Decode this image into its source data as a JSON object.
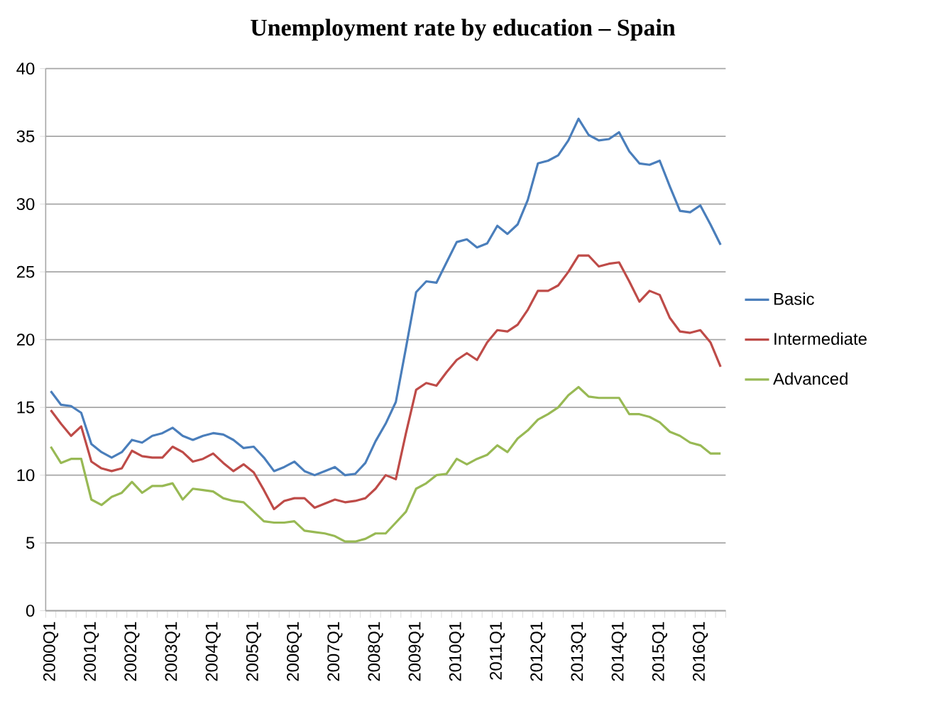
{
  "chart_data": {
    "type": "line",
    "title": "Unemployment rate by education – Spain",
    "categories": [
      "2000Q1",
      null,
      null,
      null,
      "2001Q1",
      null,
      null,
      null,
      "2002Q1",
      null,
      null,
      null,
      "2003Q1",
      null,
      null,
      null,
      "2004Q1",
      null,
      null,
      null,
      "2005Q1",
      null,
      null,
      null,
      "2006Q1",
      null,
      null,
      null,
      "2007Q1",
      null,
      null,
      null,
      "2008Q1",
      null,
      null,
      null,
      "2009Q1",
      null,
      null,
      null,
      "2010Q1",
      null,
      null,
      null,
      "2011Q1",
      null,
      null,
      null,
      "2012Q1",
      null,
      null,
      null,
      "2013Q1",
      null,
      null,
      null,
      "2014Q1",
      null,
      null,
      null,
      "2015Q1",
      null,
      null,
      null,
      "2016Q1",
      null,
      null
    ],
    "series": [
      {
        "name": "Basic",
        "color": "#4a7ebb",
        "values": [
          16.2,
          15.2,
          15.1,
          14.6,
          12.3,
          11.7,
          11.3,
          11.7,
          12.6,
          12.4,
          12.9,
          13.1,
          13.5,
          12.9,
          12.6,
          12.9,
          13.1,
          13.0,
          12.6,
          12.0,
          12.1,
          11.3,
          10.3,
          10.6,
          11.0,
          10.3,
          10.0,
          10.3,
          10.6,
          10.0,
          10.1,
          10.9,
          12.5,
          13.8,
          15.4,
          19.4,
          23.5,
          24.3,
          24.2,
          25.7,
          27.2,
          27.4,
          26.8,
          27.1,
          28.4,
          27.8,
          28.5,
          30.3,
          33.0,
          33.2,
          33.6,
          34.7,
          36.3,
          35.1,
          34.7,
          34.8,
          35.3,
          33.9,
          33.0,
          32.9,
          33.2,
          31.3,
          29.5,
          29.4,
          29.9,
          28.5,
          27.0
        ]
      },
      {
        "name": "Intermediate",
        "color": "#be4b48",
        "values": [
          14.8,
          13.8,
          12.9,
          13.6,
          11.0,
          10.5,
          10.3,
          10.5,
          11.8,
          11.4,
          11.3,
          11.3,
          12.1,
          11.7,
          11.0,
          11.2,
          11.6,
          10.9,
          10.3,
          10.8,
          10.2,
          8.9,
          7.5,
          8.1,
          8.3,
          8.3,
          7.6,
          7.9,
          8.2,
          8.0,
          8.1,
          8.3,
          9.0,
          10.0,
          9.7,
          13.1,
          16.3,
          16.8,
          16.6,
          17.6,
          18.5,
          19.0,
          18.5,
          19.8,
          20.7,
          20.6,
          21.1,
          22.2,
          23.6,
          23.6,
          24.0,
          25.0,
          26.2,
          26.2,
          25.4,
          25.6,
          25.7,
          24.3,
          22.8,
          23.6,
          23.3,
          21.6,
          20.6,
          20.5,
          20.7,
          19.8,
          18.0
        ]
      },
      {
        "name": "Advanced",
        "color": "#98b954",
        "values": [
          12.1,
          10.9,
          11.2,
          11.2,
          8.2,
          7.8,
          8.4,
          8.7,
          9.5,
          8.7,
          9.2,
          9.2,
          9.4,
          8.2,
          9.0,
          8.9,
          8.8,
          8.3,
          8.1,
          8.0,
          7.3,
          6.6,
          6.5,
          6.5,
          6.6,
          5.9,
          5.8,
          5.7,
          5.5,
          5.1,
          5.1,
          5.3,
          5.7,
          5.7,
          6.5,
          7.3,
          9.0,
          9.4,
          10.0,
          10.1,
          11.2,
          10.8,
          11.2,
          11.5,
          12.2,
          11.7,
          12.7,
          13.3,
          14.1,
          14.5,
          15.0,
          15.9,
          16.5,
          15.8,
          15.7,
          15.7,
          15.7,
          14.5,
          14.5,
          14.3,
          13.9,
          13.2,
          12.9,
          12.4,
          12.2,
          11.6,
          11.6
        ]
      }
    ],
    "ylim": [
      0,
      40
    ],
    "yticks": [
      0,
      5,
      10,
      15,
      20,
      25,
      30,
      35,
      40
    ],
    "grid": "y",
    "legend": "right"
  }
}
